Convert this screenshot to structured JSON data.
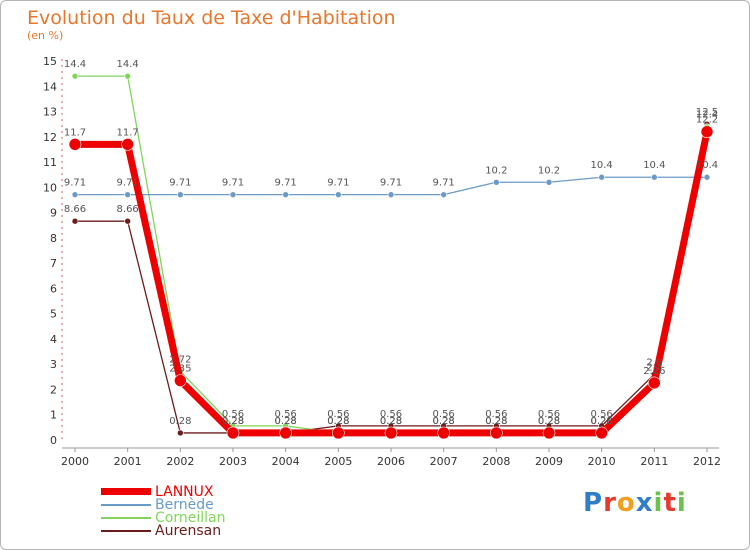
{
  "header": {
    "title": "Evolution du Taux de Taxe d'Habitation",
    "unit": "(en %)"
  },
  "logo": {
    "text": "Proxiti"
  },
  "chart_data": {
    "type": "line",
    "title": "Evolution du Taux de Taxe d'Habitation",
    "ylabel": "(en %)",
    "x": [
      "2000",
      "2001",
      "2002",
      "2003",
      "2004",
      "2005",
      "2006",
      "2007",
      "2008",
      "2009",
      "2010",
      "2011",
      "2012"
    ],
    "yticks": [
      "0",
      "1",
      "2",
      "3",
      "4",
      "5",
      "6",
      "7",
      "8",
      "9",
      "10",
      "11",
      "12",
      "13",
      "14",
      "15"
    ],
    "ylim": [
      0,
      15
    ],
    "grid": false,
    "legend_position": "bottom-left",
    "series": [
      {
        "name": "Aurensan",
        "color": "#6b1c1c",
        "values": [
          8.66,
          8.66,
          0.28,
          0.28,
          0.28,
          0.56,
          0.56,
          0.56,
          0.56,
          0.56,
          0.56,
          2.6,
          12.5
        ]
      },
      {
        "name": "Corneillan",
        "color": "#7fd65a",
        "values": [
          14.4,
          14.4,
          2.72,
          0.56,
          0.56,
          0.28,
          0.28,
          0.28,
          0.28,
          0.28,
          0.28,
          2.4,
          12.4
        ]
      },
      {
        "name": "Bernède",
        "color": "#6a9ac8",
        "values": [
          9.71,
          9.71,
          9.71,
          9.71,
          9.71,
          9.71,
          9.71,
          9.71,
          10.2,
          10.2,
          10.4,
          10.4,
          10.4
        ]
      },
      {
        "name": "LANNUX",
        "color": "#ee0000",
        "values": [
          11.7,
          11.7,
          2.35,
          0.28,
          0.28,
          0.28,
          0.28,
          0.28,
          0.28,
          0.28,
          0.28,
          2.26,
          12.2
        ]
      }
    ]
  }
}
